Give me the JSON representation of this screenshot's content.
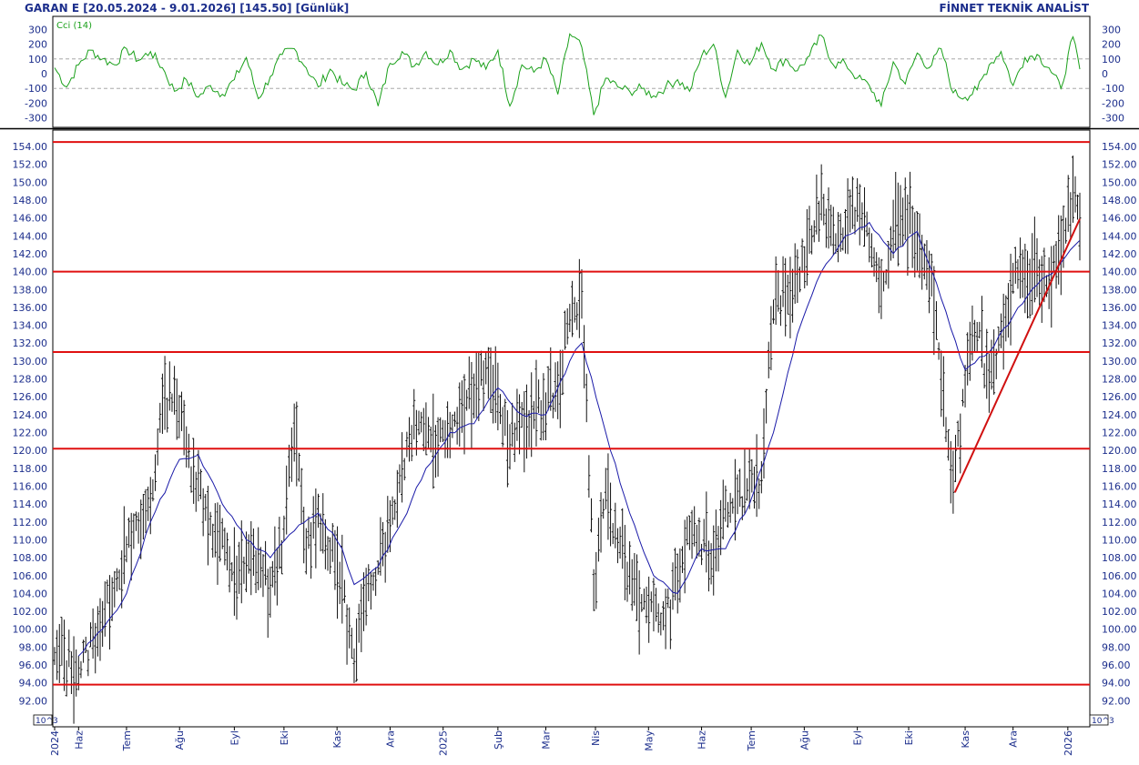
{
  "header": {
    "left": "GARAN E  [20.05.2024 - 9.01.2026]  [145.50]  [Günlük]",
    "right": "FİNNET TEKNİK ANALİST"
  },
  "colors": {
    "price_bars": "#111111",
    "moving_average": "#1a1aa8",
    "cci": "#1aa01a",
    "levels": "#e01010",
    "trendline": "#d01010",
    "text": "#1c2e8c"
  },
  "chart_data": [
    {
      "type": "line",
      "title": "Cci (14)",
      "ylim": [
        -350,
        350
      ],
      "yticks": [
        300,
        200,
        100,
        0,
        -100,
        -200,
        -300
      ],
      "grid_lines": [
        100,
        -100
      ],
      "series": [
        {
          "name": "Cci (14)",
          "points": [
            [
              "2024-05-20",
              40
            ],
            [
              "2024-05-27",
              -90
            ],
            [
              "2024-06-03",
              60
            ],
            [
              "2024-06-10",
              160
            ],
            [
              "2024-06-17",
              100
            ],
            [
              "2024-06-24",
              60
            ],
            [
              "2024-07-01",
              170
            ],
            [
              "2024-07-08",
              90
            ],
            [
              "2024-07-15",
              150
            ],
            [
              "2024-07-22",
              40
            ],
            [
              "2024-07-29",
              -120
            ],
            [
              "2024-08-05",
              -40
            ],
            [
              "2024-08-12",
              -160
            ],
            [
              "2024-08-19",
              -80
            ],
            [
              "2024-08-26",
              -140
            ],
            [
              "2024-09-02",
              -40
            ],
            [
              "2024-09-09",
              110
            ],
            [
              "2024-09-16",
              -170
            ],
            [
              "2024-09-23",
              -20
            ],
            [
              "2024-09-30",
              130
            ],
            [
              "2024-10-07",
              170
            ],
            [
              "2024-10-14",
              40
            ],
            [
              "2024-10-21",
              -90
            ],
            [
              "2024-10-28",
              30
            ],
            [
              "2024-11-04",
              -70
            ],
            [
              "2024-11-11",
              -110
            ],
            [
              "2024-11-18",
              10
            ],
            [
              "2024-11-25",
              -220
            ],
            [
              "2024-12-02",
              70
            ],
            [
              "2024-12-09",
              150
            ],
            [
              "2024-12-16",
              50
            ],
            [
              "2024-12-23",
              150
            ],
            [
              "2024-12-30",
              60
            ],
            [
              "2025-01-06",
              160
            ],
            [
              "2025-01-13",
              30
            ],
            [
              "2025-01-20",
              100
            ],
            [
              "2025-01-27",
              30
            ],
            [
              "2025-02-03",
              160
            ],
            [
              "2025-02-10",
              -220
            ],
            [
              "2025-02-17",
              60
            ],
            [
              "2025-02-24",
              10
            ],
            [
              "2025-03-03",
              100
            ],
            [
              "2025-03-10",
              -140
            ],
            [
              "2025-03-17",
              270
            ],
            [
              "2025-03-24",
              180
            ],
            [
              "2025-03-31",
              -280
            ],
            [
              "2025-04-07",
              -30
            ],
            [
              "2025-04-14",
              -90
            ],
            [
              "2025-04-21",
              -120
            ],
            [
              "2025-04-28",
              -100
            ],
            [
              "2025-05-05",
              -150
            ],
            [
              "2025-05-12",
              -90
            ],
            [
              "2025-05-19",
              -40
            ],
            [
              "2025-05-26",
              -120
            ],
            [
              "2025-06-02",
              120
            ],
            [
              "2025-06-09",
              200
            ],
            [
              "2025-06-16",
              -160
            ],
            [
              "2025-06-23",
              160
            ],
            [
              "2025-06-30",
              60
            ],
            [
              "2025-07-07",
              210
            ],
            [
              "2025-07-14",
              30
            ],
            [
              "2025-07-21",
              100
            ],
            [
              "2025-07-28",
              20
            ],
            [
              "2025-08-04",
              120
            ],
            [
              "2025-08-11",
              260
            ],
            [
              "2025-08-18",
              60
            ],
            [
              "2025-08-25",
              70
            ],
            [
              "2025-09-01",
              -30
            ],
            [
              "2025-09-08",
              -80
            ],
            [
              "2025-09-15",
              -220
            ],
            [
              "2025-09-22",
              80
            ],
            [
              "2025-09-29",
              -70
            ],
            [
              "2025-10-06",
              140
            ],
            [
              "2025-10-13",
              40
            ],
            [
              "2025-10-20",
              170
            ],
            [
              "2025-10-27",
              -130
            ],
            [
              "2025-11-03",
              -160
            ],
            [
              "2025-11-10",
              -110
            ],
            [
              "2025-11-17",
              60
            ],
            [
              "2025-11-24",
              150
            ],
            [
              "2025-12-01",
              -80
            ],
            [
              "2025-12-08",
              110
            ],
            [
              "2025-12-15",
              130
            ],
            [
              "2025-12-22",
              40
            ],
            [
              "2025-12-29",
              -100
            ],
            [
              "2026-01-05",
              250
            ],
            [
              "2026-01-09",
              30
            ]
          ]
        }
      ]
    },
    {
      "type": "bar",
      "ylim": [
        90,
        155
      ],
      "yticks": [
        "154.00",
        "152.00",
        "150.00",
        "148.00",
        "146.00",
        "144.00",
        "142.00",
        "140.00",
        "138.00",
        "136.00",
        "134.00",
        "132.00",
        "130.00",
        "128.00",
        "126.00",
        "124.00",
        "122.00",
        "120.00",
        "118.00",
        "116.00",
        "114.00",
        "112.00",
        "110.00",
        "108.00",
        "106.00",
        "104.00",
        "102.00",
        "100.00",
        "98.00",
        "96.00",
        "94.00",
        "92.00",
        "90"
      ],
      "y_unit_badge": "10^3",
      "x_range": [
        "2024-05-20",
        "2026-01-09"
      ],
      "x_tick_labels": [
        {
          "date": "2024-05-20",
          "label": "2024"
        },
        {
          "date": "2024-06-03",
          "label": "Haz"
        },
        {
          "date": "2024-07-01",
          "label": "Tem"
        },
        {
          "date": "2024-08-01",
          "label": "Ağu"
        },
        {
          "date": "2024-09-02",
          "label": "Eyl"
        },
        {
          "date": "2024-10-01",
          "label": "Eki"
        },
        {
          "date": "2024-11-01",
          "label": "Kas"
        },
        {
          "date": "2024-12-02",
          "label": "Ara"
        },
        {
          "date": "2025-01-02",
          "label": "2025"
        },
        {
          "date": "2025-02-03",
          "label": "Şub"
        },
        {
          "date": "2025-03-03",
          "label": "Mar"
        },
        {
          "date": "2025-04-01",
          "label": "Nis"
        },
        {
          "date": "2025-05-02",
          "label": "May"
        },
        {
          "date": "2025-06-02",
          "label": "Haz"
        },
        {
          "date": "2025-07-01",
          "label": "Tem"
        },
        {
          "date": "2025-08-01",
          "label": "Ağu"
        },
        {
          "date": "2025-09-01",
          "label": "Eyl"
        },
        {
          "date": "2025-10-01",
          "label": "Eki"
        },
        {
          "date": "2025-11-03",
          "label": "Kas"
        },
        {
          "date": "2025-12-01",
          "label": "Ara"
        },
        {
          "date": "2026-01-02",
          "label": "2026"
        }
      ],
      "price_path": [
        [
          "2024-05-20",
          97
        ],
        [
          "2024-06-03",
          95.5
        ],
        [
          "2024-06-17",
          101
        ],
        [
          "2024-07-01",
          109
        ],
        [
          "2024-07-15",
          114
        ],
        [
          "2024-07-22",
          125
        ],
        [
          "2024-07-29",
          127
        ],
        [
          "2024-08-05",
          120
        ],
        [
          "2024-08-19",
          112
        ],
        [
          "2024-09-02",
          106
        ],
        [
          "2024-09-16",
          108
        ],
        [
          "2024-09-23",
          104
        ],
        [
          "2024-10-01",
          111
        ],
        [
          "2024-10-07",
          122
        ],
        [
          "2024-10-14",
          109
        ],
        [
          "2024-10-21",
          113
        ],
        [
          "2024-11-04",
          105
        ],
        [
          "2024-11-11",
          96
        ],
        [
          "2024-11-18",
          104
        ],
        [
          "2024-12-02",
          112
        ],
        [
          "2024-12-16",
          124
        ],
        [
          "2024-12-30",
          121
        ],
        [
          "2025-01-13",
          125
        ],
        [
          "2025-01-27",
          129
        ],
        [
          "2025-02-10",
          121
        ],
        [
          "2025-02-24",
          124
        ],
        [
          "2025-03-10",
          127
        ],
        [
          "2025-03-17",
          135
        ],
        [
          "2025-03-24",
          138
        ],
        [
          "2025-03-31",
          105
        ],
        [
          "2025-04-07",
          116
        ],
        [
          "2025-04-14",
          109
        ],
        [
          "2025-04-28",
          103
        ],
        [
          "2025-05-12",
          101
        ],
        [
          "2025-05-26",
          111
        ],
        [
          "2025-06-09",
          108
        ],
        [
          "2025-06-16",
          114
        ],
        [
          "2025-06-30",
          116
        ],
        [
          "2025-07-07",
          117
        ],
        [
          "2025-07-14",
          136
        ],
        [
          "2025-07-28",
          139
        ],
        [
          "2025-08-11",
          148
        ],
        [
          "2025-08-18",
          144
        ],
        [
          "2025-08-25",
          145
        ],
        [
          "2025-09-01",
          148
        ],
        [
          "2025-09-08",
          143
        ],
        [
          "2025-09-15",
          138
        ],
        [
          "2025-09-22",
          144
        ],
        [
          "2025-09-29",
          147
        ],
        [
          "2025-10-06",
          143
        ],
        [
          "2025-10-13",
          140
        ],
        [
          "2025-10-20",
          128
        ],
        [
          "2025-10-27",
          117
        ],
        [
          "2025-11-03",
          127
        ],
        [
          "2025-11-10",
          133
        ],
        [
          "2025-11-17",
          128
        ],
        [
          "2025-11-24",
          133
        ],
        [
          "2025-12-01",
          139
        ],
        [
          "2025-12-08",
          140
        ],
        [
          "2025-12-15",
          141
        ],
        [
          "2025-12-22",
          138
        ],
        [
          "2025-12-29",
          143
        ],
        [
          "2026-01-05",
          149
        ],
        [
          "2026-01-09",
          145.5
        ]
      ],
      "moving_average": [
        [
          "2024-06-03",
          97
        ],
        [
          "2024-06-17",
          100
        ],
        [
          "2024-07-01",
          104
        ],
        [
          "2024-07-15",
          112
        ],
        [
          "2024-08-01",
          119
        ],
        [
          "2024-08-12",
          119.5
        ],
        [
          "2024-08-26",
          114
        ],
        [
          "2024-09-09",
          110
        ],
        [
          "2024-09-23",
          108
        ],
        [
          "2024-10-07",
          111
        ],
        [
          "2024-10-21",
          113
        ],
        [
          "2024-11-04",
          109
        ],
        [
          "2024-11-11",
          105
        ],
        [
          "2024-11-25",
          107
        ],
        [
          "2024-12-09",
          112
        ],
        [
          "2024-12-23",
          118
        ],
        [
          "2025-01-06",
          122
        ],
        [
          "2025-01-20",
          123
        ],
        [
          "2025-02-03",
          127
        ],
        [
          "2025-02-17",
          124
        ],
        [
          "2025-03-03",
          124
        ],
        [
          "2025-03-17",
          130
        ],
        [
          "2025-03-24",
          132
        ],
        [
          "2025-04-07",
          122
        ],
        [
          "2025-04-21",
          113
        ],
        [
          "2025-05-05",
          106
        ],
        [
          "2025-05-19",
          104
        ],
        [
          "2025-06-02",
          109
        ],
        [
          "2025-06-16",
          109
        ],
        [
          "2025-06-30",
          114
        ],
        [
          "2025-07-14",
          122
        ],
        [
          "2025-07-28",
          133
        ],
        [
          "2025-08-11",
          140
        ],
        [
          "2025-08-25",
          144
        ],
        [
          "2025-09-08",
          145.5
        ],
        [
          "2025-09-22",
          142
        ],
        [
          "2025-10-06",
          144.5
        ],
        [
          "2025-10-20",
          137
        ],
        [
          "2025-11-03",
          129
        ],
        [
          "2025-11-17",
          131
        ],
        [
          "2025-12-01",
          135
        ],
        [
          "2025-12-15",
          138.5
        ],
        [
          "2025-12-29",
          141
        ],
        [
          "2026-01-09",
          143.5
        ]
      ],
      "horizontal_levels": [
        154.5,
        140,
        131,
        120.2,
        93.8
      ],
      "trendline": [
        [
          "2025-10-28",
          115.3
        ],
        [
          "2026-01-09",
          145.9
        ]
      ]
    }
  ]
}
